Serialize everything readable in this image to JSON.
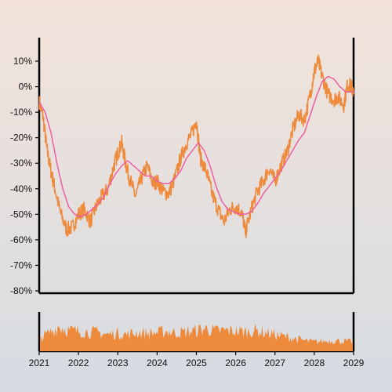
{
  "chart_data": {
    "type": "line",
    "title": "",
    "xlabel": "",
    "ylabel": "",
    "ylim": [
      -80,
      10
    ],
    "xlim": [
      2021,
      2029
    ],
    "y_ticks": [
      "10%",
      "0%",
      "-10%",
      "-20%",
      "-30%",
      "-40%",
      "-50%",
      "-60%",
      "-70%",
      "-80%"
    ],
    "y_tick_values": [
      10,
      0,
      -10,
      -20,
      -30,
      -40,
      -50,
      -60,
      -70,
      -80
    ],
    "x_ticks": [
      "2021",
      "2022",
      "2023",
      "2024",
      "2025",
      "2026",
      "2027",
      "2028",
      "2029"
    ],
    "x_tick_values": [
      2021,
      2022,
      2023,
      2024,
      2025,
      2026,
      2027,
      2028,
      2029
    ],
    "grid": false,
    "series": [
      {
        "role": "price",
        "color": "#ee8a3c",
        "points": [
          [
            2021.0,
            -6
          ],
          [
            2021.1,
            -12
          ],
          [
            2021.2,
            -25
          ],
          [
            2021.3,
            -33
          ],
          [
            2021.4,
            -40
          ],
          [
            2021.55,
            -50
          ],
          [
            2021.7,
            -56
          ],
          [
            2021.85,
            -55
          ],
          [
            2022.0,
            -50
          ],
          [
            2022.15,
            -48
          ],
          [
            2022.3,
            -53
          ],
          [
            2022.45,
            -47
          ],
          [
            2022.6,
            -43
          ],
          [
            2022.75,
            -40
          ],
          [
            2022.9,
            -31
          ],
          [
            2023.0,
            -26
          ],
          [
            2023.1,
            -22
          ],
          [
            2023.2,
            -30
          ],
          [
            2023.3,
            -36
          ],
          [
            2023.45,
            -43
          ],
          [
            2023.6,
            -36
          ],
          [
            2023.75,
            -31
          ],
          [
            2023.9,
            -38
          ],
          [
            2024.0,
            -37
          ],
          [
            2024.15,
            -41
          ],
          [
            2024.3,
            -42
          ],
          [
            2024.45,
            -36
          ],
          [
            2024.6,
            -28
          ],
          [
            2024.75,
            -22
          ],
          [
            2024.9,
            -18
          ],
          [
            2025.0,
            -13
          ],
          [
            2025.1,
            -28
          ],
          [
            2025.25,
            -33
          ],
          [
            2025.4,
            -42
          ],
          [
            2025.55,
            -48
          ],
          [
            2025.7,
            -53
          ],
          [
            2025.85,
            -48
          ],
          [
            2026.0,
            -47
          ],
          [
            2026.15,
            -49
          ],
          [
            2026.25,
            -57
          ],
          [
            2026.4,
            -48
          ],
          [
            2026.55,
            -41
          ],
          [
            2026.7,
            -37
          ],
          [
            2026.85,
            -32
          ],
          [
            2027.0,
            -37
          ],
          [
            2027.15,
            -31
          ],
          [
            2027.3,
            -26
          ],
          [
            2027.45,
            -17
          ],
          [
            2027.6,
            -11
          ],
          [
            2027.75,
            -13
          ],
          [
            2027.9,
            -3
          ],
          [
            2028.0,
            6
          ],
          [
            2028.1,
            10
          ],
          [
            2028.2,
            4
          ],
          [
            2028.35,
            -3
          ],
          [
            2028.5,
            -5
          ],
          [
            2028.6,
            -4
          ],
          [
            2028.75,
            -7
          ],
          [
            2028.85,
            1
          ],
          [
            2028.95,
            0
          ],
          [
            2029.0,
            -3
          ]
        ]
      },
      {
        "role": "moving-average",
        "color": "#ee5fa0",
        "points": [
          [
            2021.0,
            -6
          ],
          [
            2021.15,
            -10
          ],
          [
            2021.3,
            -18
          ],
          [
            2021.45,
            -30
          ],
          [
            2021.6,
            -40
          ],
          [
            2021.75,
            -47
          ],
          [
            2021.9,
            -50
          ],
          [
            2022.05,
            -51
          ],
          [
            2022.2,
            -50
          ],
          [
            2022.35,
            -48
          ],
          [
            2022.5,
            -46
          ],
          [
            2022.65,
            -43
          ],
          [
            2022.8,
            -38
          ],
          [
            2022.95,
            -34
          ],
          [
            2023.1,
            -31
          ],
          [
            2023.25,
            -29
          ],
          [
            2023.4,
            -31
          ],
          [
            2023.55,
            -33
          ],
          [
            2023.7,
            -35
          ],
          [
            2023.85,
            -35
          ],
          [
            2024.0,
            -37
          ],
          [
            2024.15,
            -38
          ],
          [
            2024.3,
            -38
          ],
          [
            2024.45,
            -36
          ],
          [
            2024.6,
            -33
          ],
          [
            2024.75,
            -28
          ],
          [
            2024.9,
            -25
          ],
          [
            2025.05,
            -22
          ],
          [
            2025.2,
            -25
          ],
          [
            2025.35,
            -31
          ],
          [
            2025.5,
            -39
          ],
          [
            2025.65,
            -45
          ],
          [
            2025.8,
            -48
          ],
          [
            2025.95,
            -49
          ],
          [
            2026.1,
            -50
          ],
          [
            2026.25,
            -50
          ],
          [
            2026.4,
            -49
          ],
          [
            2026.55,
            -46
          ],
          [
            2026.7,
            -42
          ],
          [
            2026.85,
            -39
          ],
          [
            2027.0,
            -36
          ],
          [
            2027.15,
            -33
          ],
          [
            2027.3,
            -29
          ],
          [
            2027.45,
            -25
          ],
          [
            2027.6,
            -21
          ],
          [
            2027.75,
            -18
          ],
          [
            2027.9,
            -11
          ],
          [
            2028.05,
            -4
          ],
          [
            2028.2,
            2
          ],
          [
            2028.35,
            4
          ],
          [
            2028.5,
            3
          ],
          [
            2028.65,
            0
          ],
          [
            2028.8,
            -2
          ],
          [
            2028.95,
            -2
          ],
          [
            2029.0,
            -2
          ]
        ]
      }
    ],
    "volume": {
      "color": "#ee8a3c",
      "points": [
        [
          2021.0,
          0.38
        ],
        [
          2021.25,
          0.55
        ],
        [
          2021.5,
          0.75
        ],
        [
          2021.75,
          0.62
        ],
        [
          2022.0,
          0.6
        ],
        [
          2022.25,
          0.58
        ],
        [
          2022.5,
          0.56
        ],
        [
          2022.75,
          0.5
        ],
        [
          2023.0,
          0.54
        ],
        [
          2023.25,
          0.5
        ],
        [
          2023.5,
          0.56
        ],
        [
          2023.75,
          0.54
        ],
        [
          2024.0,
          0.56
        ],
        [
          2024.25,
          0.6
        ],
        [
          2024.5,
          0.55
        ],
        [
          2024.75,
          0.58
        ],
        [
          2025.0,
          0.62
        ],
        [
          2025.25,
          0.68
        ],
        [
          2025.5,
          0.6
        ],
        [
          2025.75,
          0.62
        ],
        [
          2026.0,
          0.6
        ],
        [
          2026.25,
          0.58
        ],
        [
          2026.5,
          0.62
        ],
        [
          2026.75,
          0.56
        ],
        [
          2027.0,
          0.5
        ],
        [
          2027.25,
          0.44
        ],
        [
          2027.5,
          0.38
        ],
        [
          2027.75,
          0.32
        ],
        [
          2028.0,
          0.28
        ],
        [
          2028.25,
          0.3
        ],
        [
          2028.5,
          0.32
        ],
        [
          2028.75,
          0.3
        ],
        [
          2029.0,
          0.28
        ]
      ]
    }
  }
}
